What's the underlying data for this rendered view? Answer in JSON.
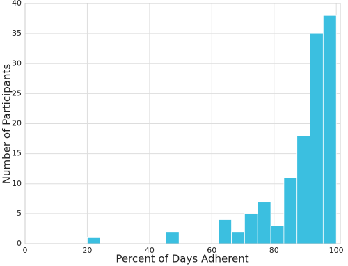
{
  "chart_data": {
    "type": "histogram",
    "x_label": "Percent of Days Adherent",
    "y_label": "Number of Participants",
    "bins": [
      20,
      24.21,
      28.42,
      32.63,
      36.84,
      41.05,
      45.26,
      49.47,
      53.68,
      57.89,
      62.11,
      66.32,
      70.53,
      74.74,
      78.95,
      83.16,
      87.37,
      91.58,
      95.79,
      100
    ],
    "values": [
      1,
      0,
      0,
      0,
      0,
      0,
      2,
      0,
      0,
      0,
      4,
      2,
      5,
      7,
      3,
      11,
      18,
      35,
      38
    ],
    "color": "#3bbfe0",
    "xlim": [
      0,
      101.3
    ],
    "xticks": [
      0,
      20,
      40,
      60,
      80,
      100
    ],
    "ylim": [
      0,
      40
    ],
    "yticks": [
      0,
      5,
      10,
      15,
      20,
      25,
      30,
      35,
      40
    ],
    "grid": true
  }
}
